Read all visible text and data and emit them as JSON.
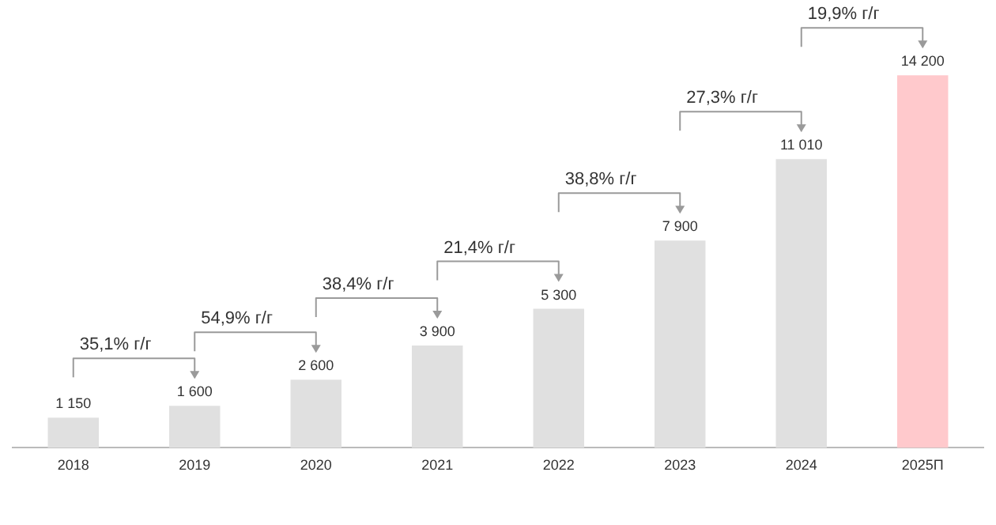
{
  "chart_data": {
    "type": "bar",
    "categories": [
      "2018",
      "2019",
      "2020",
      "2021",
      "2022",
      "2023",
      "2024",
      "2025П"
    ],
    "values": [
      1150,
      1600,
      2600,
      3900,
      5300,
      7900,
      11010,
      14200
    ],
    "colors": [
      "#e0e0e0",
      "#e0e0e0",
      "#e0e0e0",
      "#e0e0e0",
      "#e0e0e0",
      "#e0e0e0",
      "#e0e0e0",
      "#ffc9cc"
    ],
    "value_labels": [
      "1 150",
      "1 600",
      "2 600",
      "3 900",
      "5 300",
      "7 900",
      "11 010",
      "14 200"
    ],
    "tick_labels": "x",
    "grid": false,
    "legend": false,
    "annotations": [
      "35,1% г/г",
      "54,9% г/г",
      "38,4% г/г",
      "21,4% г/г",
      "38,8% г/г",
      "27,3% г/г",
      "19,9% г/г"
    ]
  }
}
